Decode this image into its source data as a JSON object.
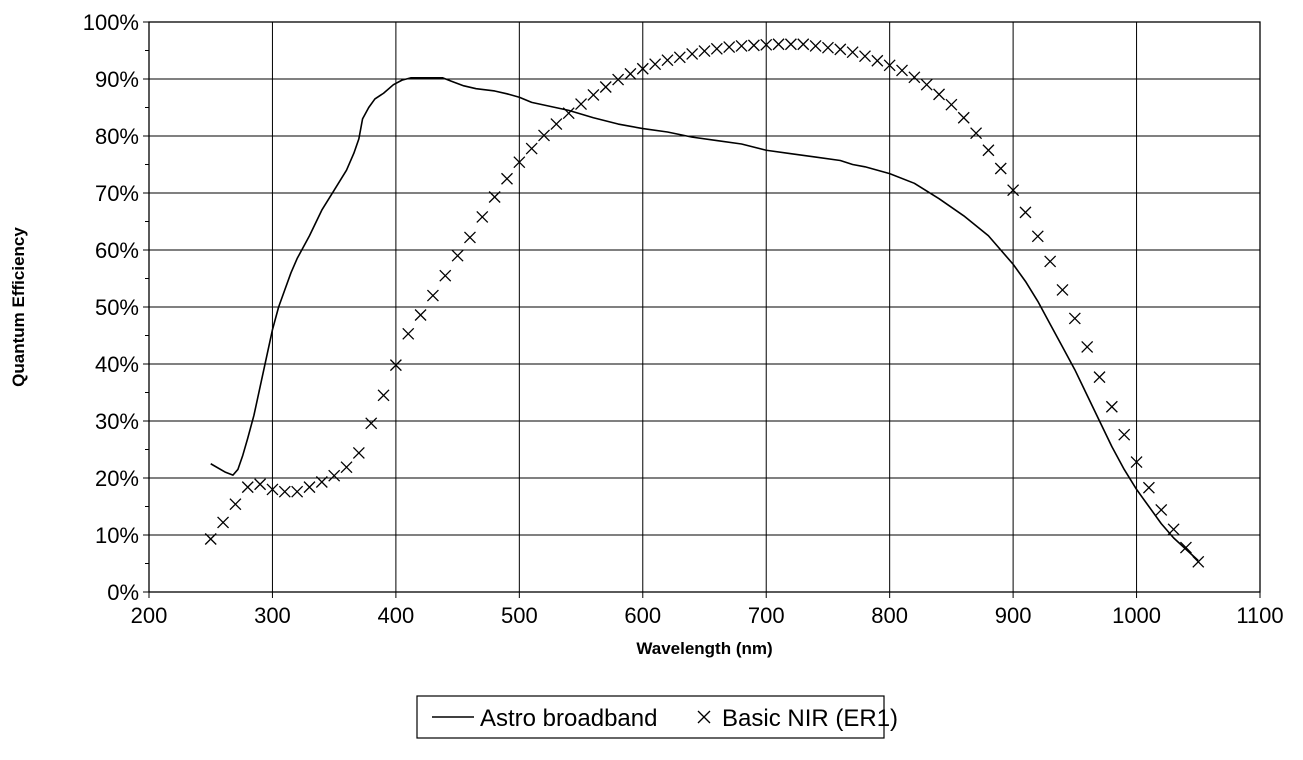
{
  "chart_data": {
    "type": "line",
    "title": "",
    "xlabel": "Wavelength (nm)",
    "ylabel": "Quantum Efficiency",
    "xlim": [
      200,
      1100
    ],
    "ylim": [
      0,
      100
    ],
    "x_ticks": [
      200,
      300,
      400,
      500,
      600,
      700,
      800,
      900,
      1000,
      1100
    ],
    "x_tick_labels": [
      "200",
      "300",
      "400",
      "500",
      "600",
      "700",
      "800",
      "900",
      "1000",
      "1100"
    ],
    "y_ticks": [
      0,
      10,
      20,
      30,
      40,
      50,
      60,
      70,
      80,
      90,
      100
    ],
    "y_tick_labels": [
      "0%",
      "10%",
      "20%",
      "30%",
      "40%",
      "50%",
      "60%",
      "70%",
      "80%",
      "90%",
      "100%"
    ],
    "grid": "horizontal and vertical major gridlines",
    "legend_position": "bottom-center",
    "series": [
      {
        "name": "Astro broadband",
        "style": "line",
        "color": "#000000",
        "points": [
          [
            250,
            22.5
          ],
          [
            262,
            21
          ],
          [
            268,
            20.5
          ],
          [
            272,
            21.5
          ],
          [
            276,
            24
          ],
          [
            280,
            27
          ],
          [
            285,
            31
          ],
          [
            290,
            36
          ],
          [
            295,
            41
          ],
          [
            300,
            46
          ],
          [
            305,
            50
          ],
          [
            310,
            53
          ],
          [
            315,
            56
          ],
          [
            320,
            58.5
          ],
          [
            330,
            62.5
          ],
          [
            340,
            67
          ],
          [
            350,
            70.5
          ],
          [
            360,
            74
          ],
          [
            366,
            77
          ],
          [
            370,
            79.5
          ],
          [
            373,
            83
          ],
          [
            378,
            85
          ],
          [
            383,
            86.5
          ],
          [
            390,
            87.5
          ],
          [
            398,
            89
          ],
          [
            405,
            89.8
          ],
          [
            412,
            90.2
          ],
          [
            420,
            90.2
          ],
          [
            430,
            90.2
          ],
          [
            438,
            90.2
          ],
          [
            445,
            89.6
          ],
          [
            455,
            88.8
          ],
          [
            465,
            88.3
          ],
          [
            480,
            87.9
          ],
          [
            490,
            87.4
          ],
          [
            500,
            86.8
          ],
          [
            510,
            85.9
          ],
          [
            525,
            85.2
          ],
          [
            540,
            84.5
          ],
          [
            560,
            83.2
          ],
          [
            580,
            82.1
          ],
          [
            600,
            81.3
          ],
          [
            620,
            80.7
          ],
          [
            640,
            79.8
          ],
          [
            660,
            79.2
          ],
          [
            680,
            78.6
          ],
          [
            700,
            77.5
          ],
          [
            720,
            76.9
          ],
          [
            740,
            76.3
          ],
          [
            760,
            75.7
          ],
          [
            770,
            75
          ],
          [
            780,
            74.6
          ],
          [
            800,
            73.4
          ],
          [
            820,
            71.7
          ],
          [
            840,
            69
          ],
          [
            860,
            66
          ],
          [
            880,
            62.5
          ],
          [
            890,
            60
          ],
          [
            900,
            57.5
          ],
          [
            910,
            54.5
          ],
          [
            920,
            51
          ],
          [
            930,
            47
          ],
          [
            940,
            43
          ],
          [
            950,
            39
          ],
          [
            960,
            34.5
          ],
          [
            970,
            30
          ],
          [
            980,
            25.5
          ],
          [
            990,
            21.5
          ],
          [
            1000,
            18
          ],
          [
            1010,
            15
          ],
          [
            1020,
            12
          ],
          [
            1030,
            9.5
          ],
          [
            1040,
            7.5
          ],
          [
            1050,
            5.5
          ]
        ]
      },
      {
        "name": "Basic NIR (ER1)",
        "style": "markers",
        "marker": "x",
        "color": "#000000",
        "points": [
          [
            250,
            9.3
          ],
          [
            260,
            12.2
          ],
          [
            270,
            15.4
          ],
          [
            280,
            18.4
          ],
          [
            290,
            18.9
          ],
          [
            300,
            18
          ],
          [
            310,
            17.6
          ],
          [
            320,
            17.6
          ],
          [
            330,
            18.4
          ],
          [
            340,
            19.3
          ],
          [
            350,
            20.4
          ],
          [
            360,
            21.9
          ],
          [
            370,
            24.4
          ],
          [
            380,
            29.6
          ],
          [
            390,
            34.5
          ],
          [
            400,
            39.8
          ],
          [
            410,
            45.3
          ],
          [
            420,
            48.6
          ],
          [
            430,
            52
          ],
          [
            440,
            55.5
          ],
          [
            450,
            59
          ],
          [
            460,
            62.2
          ],
          [
            470,
            65.8
          ],
          [
            480,
            69.3
          ],
          [
            490,
            72.5
          ],
          [
            500,
            75.4
          ],
          [
            510,
            77.8
          ],
          [
            520,
            80.1
          ],
          [
            530,
            82.1
          ],
          [
            540,
            84
          ],
          [
            550,
            85.6
          ],
          [
            560,
            87.2
          ],
          [
            570,
            88.6
          ],
          [
            580,
            89.9
          ],
          [
            590,
            90.9
          ],
          [
            600,
            91.8
          ],
          [
            610,
            92.6
          ],
          [
            620,
            93.3
          ],
          [
            630,
            93.8
          ],
          [
            640,
            94.4
          ],
          [
            650,
            94.9
          ],
          [
            660,
            95.3
          ],
          [
            670,
            95.6
          ],
          [
            680,
            95.8
          ],
          [
            690,
            95.9
          ],
          [
            700,
            96
          ],
          [
            710,
            96.1
          ],
          [
            720,
            96.1
          ],
          [
            730,
            96.1
          ],
          [
            740,
            95.8
          ],
          [
            750,
            95.5
          ],
          [
            760,
            95.2
          ],
          [
            770,
            94.7
          ],
          [
            780,
            94
          ],
          [
            790,
            93.2
          ],
          [
            800,
            92.4
          ],
          [
            810,
            91.5
          ],
          [
            820,
            90.3
          ],
          [
            830,
            89
          ],
          [
            840,
            87.3
          ],
          [
            850,
            85.5
          ],
          [
            860,
            83.2
          ],
          [
            870,
            80.5
          ],
          [
            880,
            77.5
          ],
          [
            890,
            74.3
          ],
          [
            900,
            70.5
          ],
          [
            910,
            66.6
          ],
          [
            920,
            62.4
          ],
          [
            930,
            58
          ],
          [
            940,
            53
          ],
          [
            950,
            48
          ],
          [
            960,
            43
          ],
          [
            970,
            37.7
          ],
          [
            980,
            32.5
          ],
          [
            990,
            27.6
          ],
          [
            1000,
            22.8
          ],
          [
            1010,
            18.3
          ],
          [
            1020,
            14.4
          ],
          [
            1030,
            11
          ],
          [
            1040,
            7.8
          ],
          [
            1050,
            5.3
          ]
        ]
      }
    ]
  }
}
